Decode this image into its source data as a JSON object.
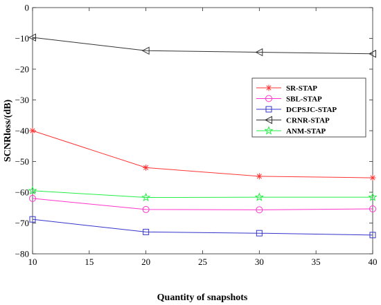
{
  "chart_data": {
    "type": "line",
    "title": "",
    "xlabel": "Quantity of snapshots",
    "ylabel": "SCNRloss/(dB)",
    "xlim": [
      10,
      40
    ],
    "ylim": [
      -80,
      0
    ],
    "xticks": [
      10,
      15,
      20,
      25,
      30,
      35,
      40
    ],
    "yticks": [
      0,
      -10,
      -20,
      -30,
      -40,
      -50,
      -60,
      -70,
      -80
    ],
    "grid": false,
    "legend_position": "right",
    "x": [
      10,
      20,
      30,
      40
    ],
    "series": [
      {
        "name": "SR-STAP",
        "values": [
          -40.0,
          -52.0,
          -54.8,
          -55.3
        ],
        "color": "#ff3333",
        "marker": "asterisk"
      },
      {
        "name": "SBL-STAP",
        "values": [
          -62.0,
          -65.6,
          -65.7,
          -65.4
        ],
        "color": "#ff33cc",
        "marker": "circle"
      },
      {
        "name": "DCPSJC-STAP",
        "values": [
          -68.8,
          -72.9,
          -73.3,
          -73.9
        ],
        "color": "#3333cc",
        "marker": "square"
      },
      {
        "name": "CRNR-STAP",
        "values": [
          -9.7,
          -14.0,
          -14.5,
          -15.0
        ],
        "color": "#333333",
        "marker": "triangle-left"
      },
      {
        "name": "ANM-STAP",
        "values": [
          -59.5,
          -61.7,
          -61.6,
          -61.6
        ],
        "color": "#22ee44",
        "marker": "star"
      }
    ]
  }
}
